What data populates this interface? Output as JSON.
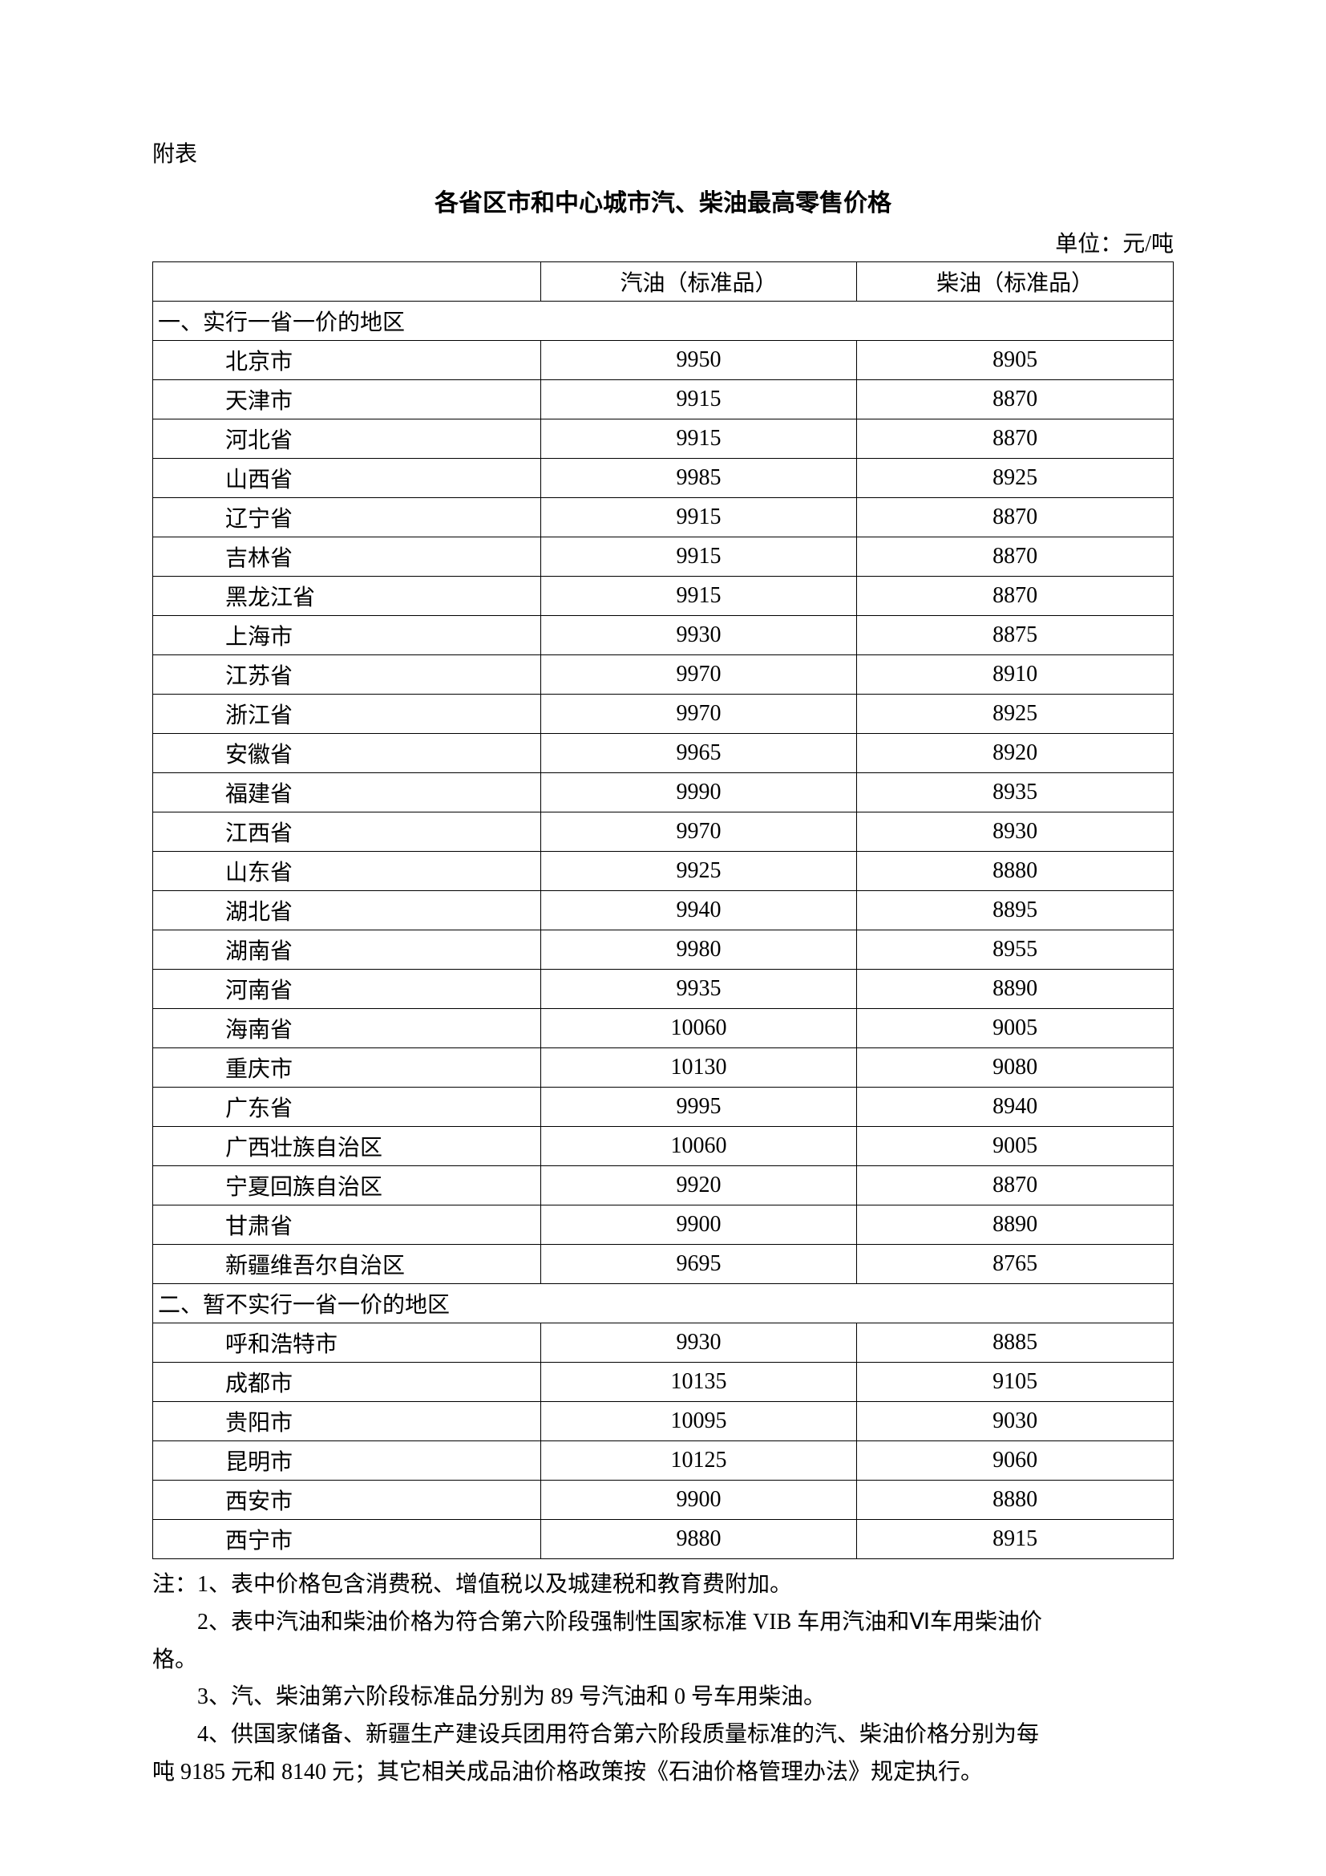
{
  "prefix": "附表",
  "title": "各省区市和中心城市汽、柴油最高零售价格",
  "unit": "单位：元/吨",
  "headers": {
    "name": "",
    "gas": "汽油（标准品）",
    "diesel": "柴油（标准品）"
  },
  "section1_title": "一、实行一省一价的地区",
  "section1_rows": [
    {
      "name": "北京市",
      "gas": "9950",
      "diesel": "8905"
    },
    {
      "name": "天津市",
      "gas": "9915",
      "diesel": "8870"
    },
    {
      "name": "河北省",
      "gas": "9915",
      "diesel": "8870"
    },
    {
      "name": "山西省",
      "gas": "9985",
      "diesel": "8925"
    },
    {
      "name": "辽宁省",
      "gas": "9915",
      "diesel": "8870"
    },
    {
      "name": "吉林省",
      "gas": "9915",
      "diesel": "8870"
    },
    {
      "name": "黑龙江省",
      "gas": "9915",
      "diesel": "8870"
    },
    {
      "name": "上海市",
      "gas": "9930",
      "diesel": "8875"
    },
    {
      "name": "江苏省",
      "gas": "9970",
      "diesel": "8910"
    },
    {
      "name": "浙江省",
      "gas": "9970",
      "diesel": "8925"
    },
    {
      "name": "安徽省",
      "gas": "9965",
      "diesel": "8920"
    },
    {
      "name": "福建省",
      "gas": "9990",
      "diesel": "8935"
    },
    {
      "name": "江西省",
      "gas": "9970",
      "diesel": "8930"
    },
    {
      "name": "山东省",
      "gas": "9925",
      "diesel": "8880"
    },
    {
      "name": "湖北省",
      "gas": "9940",
      "diesel": "8895"
    },
    {
      "name": "湖南省",
      "gas": "9980",
      "diesel": "8955"
    },
    {
      "name": "河南省",
      "gas": "9935",
      "diesel": "8890"
    },
    {
      "name": "海南省",
      "gas": "10060",
      "diesel": "9005"
    },
    {
      "name": "重庆市",
      "gas": "10130",
      "diesel": "9080"
    },
    {
      "name": "广东省",
      "gas": "9995",
      "diesel": "8940"
    },
    {
      "name": "广西壮族自治区",
      "gas": "10060",
      "diesel": "9005"
    },
    {
      "name": "宁夏回族自治区",
      "gas": "9920",
      "diesel": "8870"
    },
    {
      "name": "甘肃省",
      "gas": "9900",
      "diesel": "8890"
    },
    {
      "name": "新疆维吾尔自治区",
      "gas": "9695",
      "diesel": "8765"
    }
  ],
  "section2_title": "二、暂不实行一省一价的地区",
  "section2_rows": [
    {
      "name": "呼和浩特市",
      "gas": "9930",
      "diesel": "8885"
    },
    {
      "name": "成都市",
      "gas": "10135",
      "diesel": "9105"
    },
    {
      "name": "贵阳市",
      "gas": "10095",
      "diesel": "9030"
    },
    {
      "name": "昆明市",
      "gas": "10125",
      "diesel": "9060"
    },
    {
      "name": "西安市",
      "gas": "9900",
      "diesel": "8880"
    },
    {
      "name": "西宁市",
      "gas": "9880",
      "diesel": "8915"
    }
  ],
  "notes": {
    "n1": "注：1、表中价格包含消费税、增值税以及城建税和教育费附加。",
    "n2a": "2、表中汽油和柴油价格为符合第六阶段强制性国家标准 VIB 车用汽油和Ⅵ车用柴油价",
    "n2b": "格。",
    "n3": "3、汽、柴油第六阶段标准品分别为 89 号汽油和 0 号车用柴油。",
    "n4a": "4、供国家储备、新疆生产建设兵团用符合第六阶段质量标准的汽、柴油价格分别为每",
    "n4b": "吨 9185 元和 8140 元；其它相关成品油价格政策按《石油价格管理办法》规定执行。"
  }
}
